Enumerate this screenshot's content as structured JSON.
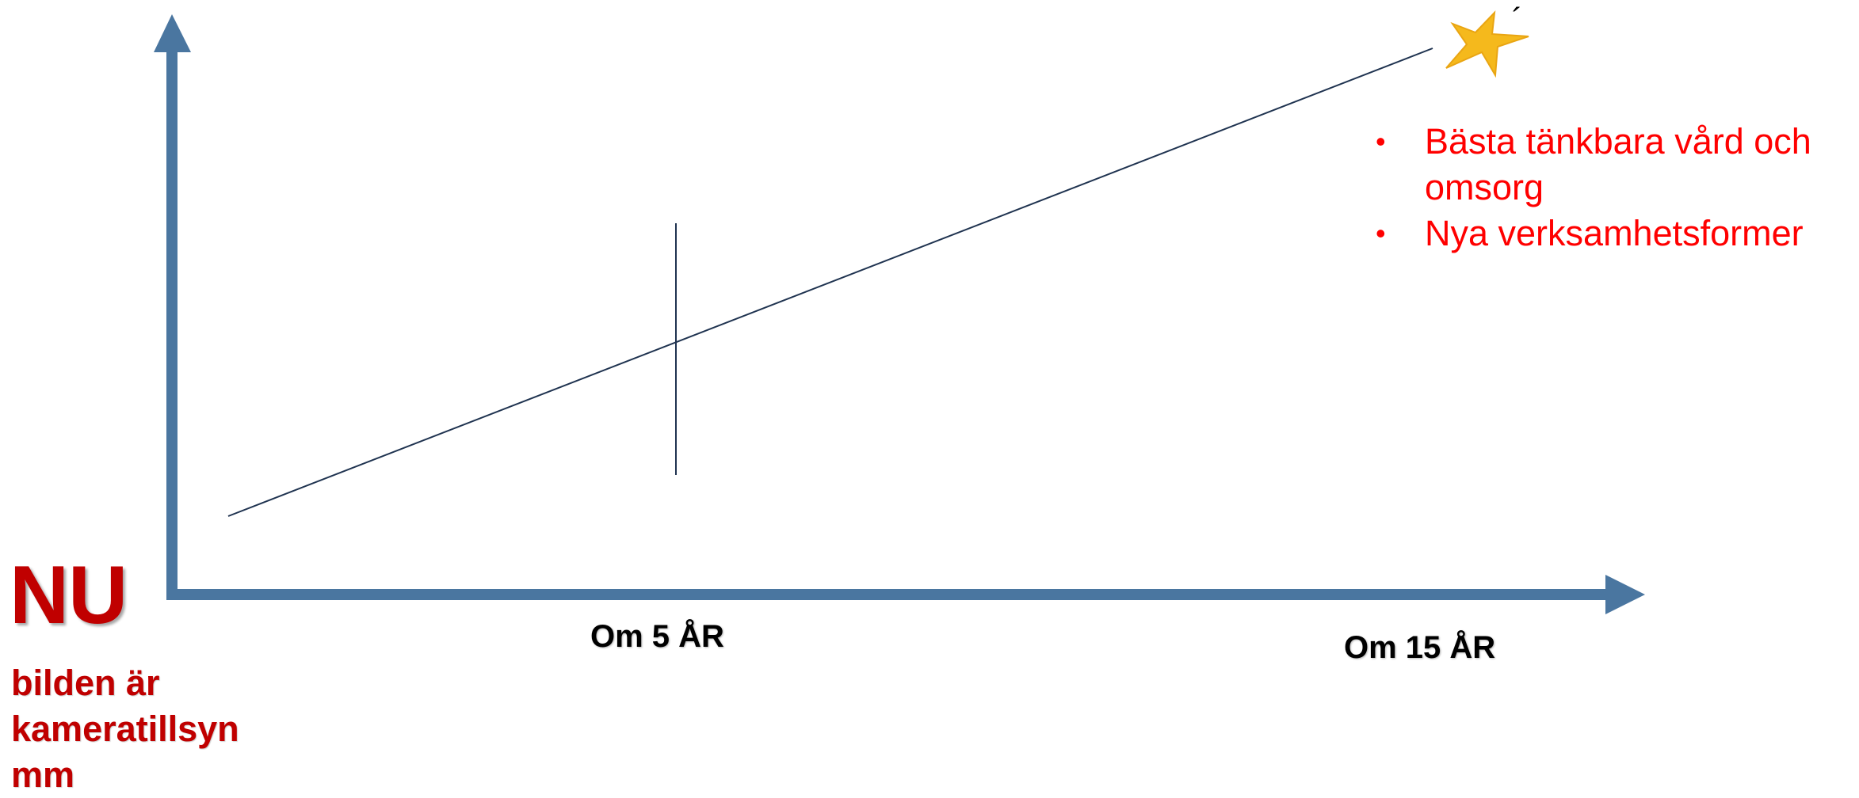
{
  "colors": {
    "axis": "#4a76a0",
    "line": "#1f3350",
    "accent_text": "#c00000",
    "goal_text": "#ff0000",
    "star": "#f5b91c"
  },
  "icons": {
    "goal": "star-icon"
  },
  "nu": {
    "title": "NU",
    "subtitle": "bilden är\nkameratillsyn\nmm"
  },
  "timeline": {
    "ticks": [
      {
        "label": "Om 5 ÅR"
      },
      {
        "label": "Om 15 ÅR"
      }
    ]
  },
  "goals": [
    "Bästa tänkbara vård och omsorg",
    "Nya verksamhetsformer"
  ],
  "star_mark": "´"
}
